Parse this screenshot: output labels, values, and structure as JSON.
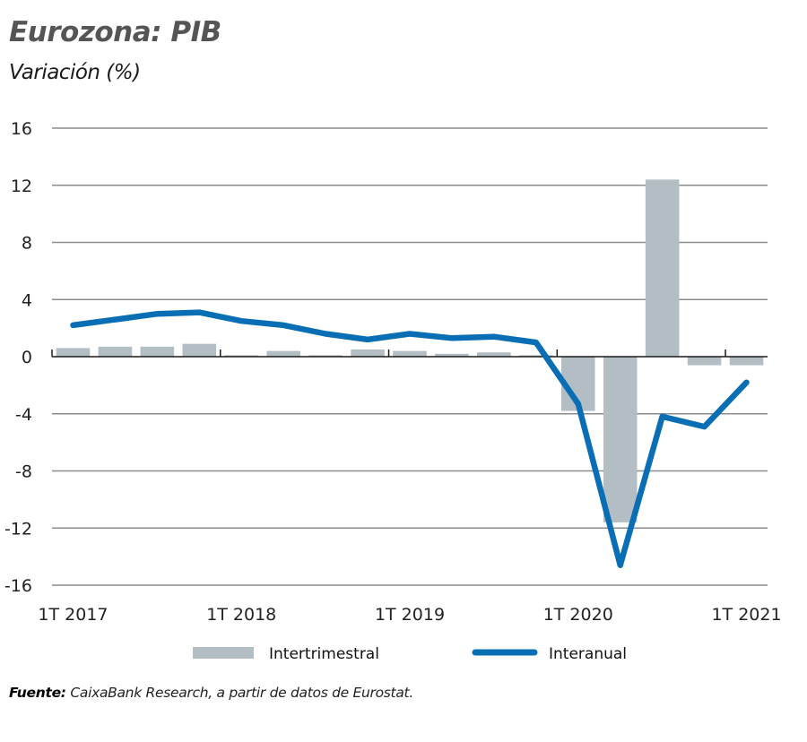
{
  "title": "Eurozona: PIB",
  "subtitle": "Variación (%)",
  "source": {
    "label": "Fuente:",
    "text": " CaixaBank Research, a partir de datos de Eurostat."
  },
  "colors": {
    "bars": "#b2bec3",
    "line": "#0a6eb4",
    "grid": "#8c8c8c",
    "axis": "#1a1a1a"
  },
  "chart_data": {
    "type": "bar",
    "title": "Eurozona: PIB",
    "subtitle": "Variación (%)",
    "xlabel": "",
    "ylabel": "",
    "ylim": [
      -16,
      16
    ],
    "yticks": [
      16,
      12,
      8,
      4,
      0,
      -4,
      -8,
      -12,
      -16
    ],
    "grid": true,
    "legend_position": "bottom",
    "categories": [
      "1T 2017",
      "2T 2017",
      "3T 2017",
      "4T 2017",
      "1T 2018",
      "2T 2018",
      "3T 2018",
      "4T 2018",
      "1T 2019",
      "2T 2019",
      "3T 2019",
      "4T 2019",
      "1T 2020",
      "2T 2020",
      "3T 2020",
      "4T 2020",
      "1T 2021"
    ],
    "xtick_labels": [
      "1T 2017",
      "1T 2018",
      "1T 2019",
      "1T 2020",
      "1T 2021"
    ],
    "series": [
      {
        "name": "Intertrimestral",
        "type": "bar",
        "values": [
          0.6,
          0.7,
          0.7,
          0.9,
          0.1,
          0.4,
          0.1,
          0.5,
          0.4,
          0.2,
          0.3,
          0.1,
          -3.8,
          -11.6,
          12.4,
          -0.6,
          -0.6
        ]
      },
      {
        "name": "Interanual",
        "type": "line",
        "values": [
          2.2,
          2.6,
          3.0,
          3.1,
          2.5,
          2.2,
          1.6,
          1.2,
          1.6,
          1.3,
          1.4,
          1.0,
          -3.3,
          -14.6,
          -4.2,
          -4.9,
          -1.8
        ]
      }
    ]
  }
}
